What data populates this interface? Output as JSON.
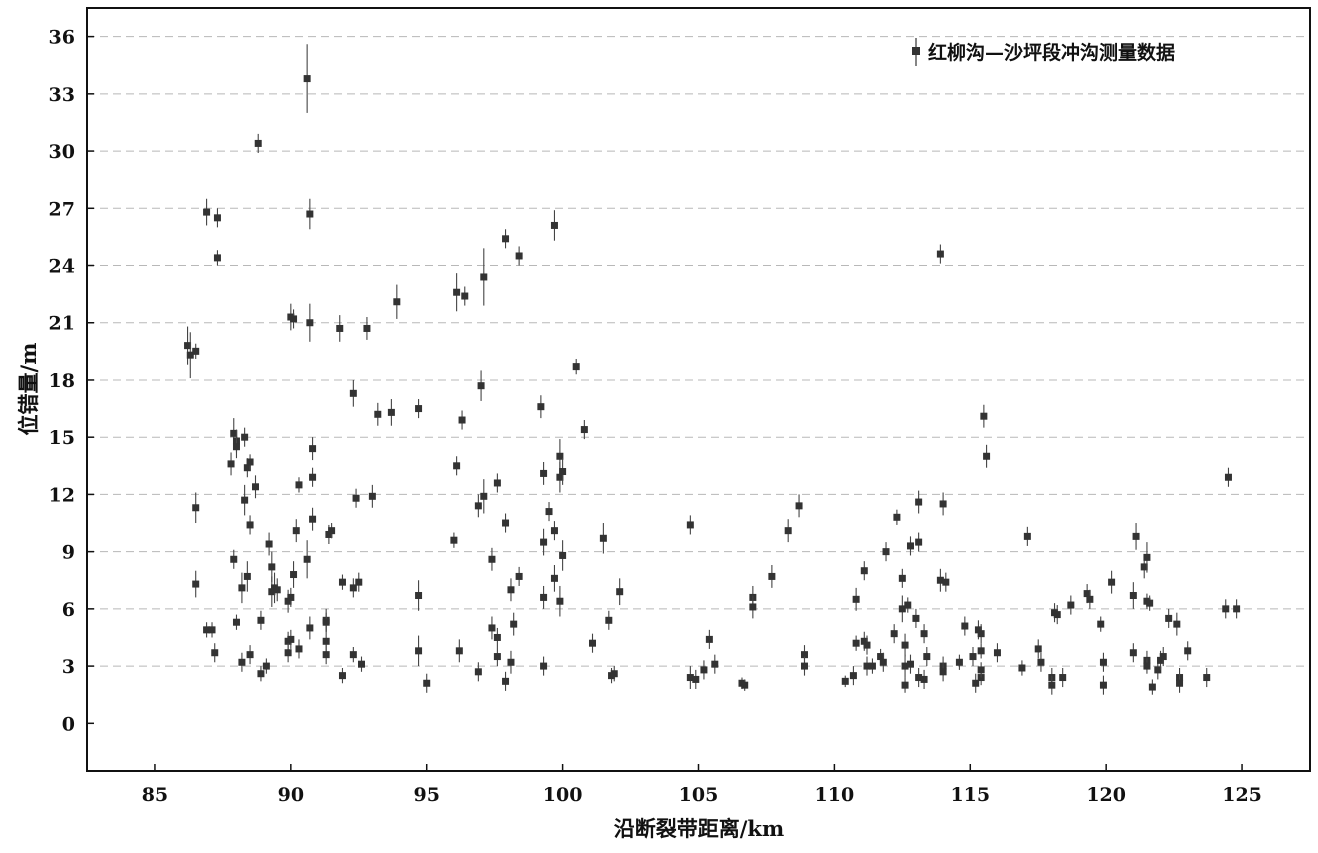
{
  "chart_data": {
    "type": "scatter",
    "title": "",
    "xlabel": "沿断裂带距离/km",
    "ylabel": "位错量/m",
    "xlim": [
      82.5,
      127.5
    ],
    "ylim": [
      -2.5,
      37.5
    ],
    "xticks": [
      85,
      90,
      95,
      100,
      105,
      110,
      115,
      120,
      125
    ],
    "yticks": [
      0,
      3,
      6,
      9,
      12,
      15,
      18,
      21,
      24,
      27,
      30,
      33,
      36
    ],
    "grid": "horizontal dashed",
    "legend_position": "top-right",
    "series": [
      {
        "name": "红柳沟—沙坪段冲沟测量数据",
        "color": "#333333",
        "marker": "square",
        "points": [
          [
            86.2,
            19.8,
            1.0
          ],
          [
            86.3,
            19.3,
            1.2
          ],
          [
            86.5,
            19.5,
            0.4
          ],
          [
            86.5,
            11.3,
            0.8
          ],
          [
            86.5,
            7.3,
            0.7
          ],
          [
            86.9,
            26.8,
            0.7
          ],
          [
            87.3,
            26.5,
            0.5
          ],
          [
            87.3,
            24.4,
            0.4
          ],
          [
            86.9,
            4.9,
            0.4
          ],
          [
            87.1,
            4.9,
            0.4
          ],
          [
            87.2,
            3.7,
            0.5
          ],
          [
            87.8,
            13.6,
            0.6
          ],
          [
            87.9,
            15.2,
            0.8
          ],
          [
            88.0,
            14.8,
            0.6
          ],
          [
            88.0,
            14.5,
            0.6
          ],
          [
            87.9,
            8.6,
            0.5
          ],
          [
            88.0,
            5.3,
            0.4
          ],
          [
            88.3,
            15.0,
            0.5
          ],
          [
            88.4,
            13.4,
            0.5
          ],
          [
            88.5,
            13.7,
            0.4
          ],
          [
            88.3,
            11.7,
            0.8
          ],
          [
            88.5,
            10.4,
            0.5
          ],
          [
            88.7,
            12.4,
            0.6
          ],
          [
            88.2,
            7.1,
            0.8
          ],
          [
            88.4,
            7.7,
            0.8
          ],
          [
            88.2,
            3.2,
            0.5
          ],
          [
            88.5,
            3.6,
            0.5
          ],
          [
            88.8,
            30.4,
            0.5
          ],
          [
            88.9,
            5.4,
            0.5
          ],
          [
            88.9,
            2.6,
            0.4
          ],
          [
            89.1,
            3.0,
            0.4
          ],
          [
            89.2,
            9.4,
            0.6
          ],
          [
            89.3,
            8.2,
            0.8
          ],
          [
            89.3,
            6.9,
            0.8
          ],
          [
            89.4,
            7.1,
            0.8
          ],
          [
            89.5,
            7.0,
            0.6
          ],
          [
            89.9,
            6.4,
            0.6
          ],
          [
            90.0,
            6.6,
            0.5
          ],
          [
            89.9,
            4.3,
            0.5
          ],
          [
            90.0,
            4.4,
            0.5
          ],
          [
            89.9,
            3.7,
            0.5
          ],
          [
            90.0,
            21.3,
            0.7
          ],
          [
            90.1,
            21.2,
            0.5
          ],
          [
            90.1,
            7.8,
            0.7
          ],
          [
            90.2,
            10.1,
            0.6
          ],
          [
            90.3,
            12.5,
            0.4
          ],
          [
            90.3,
            3.9,
            0.5
          ],
          [
            90.6,
            33.8,
            1.8
          ],
          [
            90.7,
            26.7,
            0.8
          ],
          [
            90.7,
            21.0,
            1.0
          ],
          [
            90.6,
            8.6,
            1.0
          ],
          [
            90.7,
            5.0,
            0.6
          ],
          [
            90.8,
            14.4,
            0.6
          ],
          [
            90.8,
            12.9,
            0.5
          ],
          [
            90.8,
            10.7,
            0.6
          ],
          [
            91.3,
            5.4,
            0.6
          ],
          [
            91.3,
            5.3,
            0.5
          ],
          [
            91.3,
            4.3,
            0.8
          ],
          [
            91.3,
            3.6,
            0.5
          ],
          [
            91.4,
            9.9,
            0.5
          ],
          [
            91.5,
            10.1,
            0.4
          ],
          [
            91.8,
            20.7,
            0.7
          ],
          [
            91.9,
            7.4,
            0.4
          ],
          [
            91.9,
            2.5,
            0.4
          ],
          [
            92.3,
            17.3,
            0.7
          ],
          [
            92.4,
            11.8,
            0.5
          ],
          [
            92.3,
            7.1,
            0.5
          ],
          [
            92.5,
            7.4,
            0.5
          ],
          [
            92.3,
            3.6,
            0.4
          ],
          [
            92.6,
            3.1,
            0.4
          ],
          [
            92.8,
            20.7,
            0.6
          ],
          [
            93.0,
            11.9,
            0.6
          ],
          [
            93.2,
            16.2,
            0.6
          ],
          [
            93.7,
            16.3,
            0.7
          ],
          [
            93.9,
            22.1,
            0.9
          ],
          [
            94.7,
            16.5,
            0.5
          ],
          [
            94.7,
            6.7,
            0.8
          ],
          [
            94.7,
            3.8,
            0.8
          ],
          [
            95.0,
            2.1,
            0.5
          ],
          [
            96.1,
            22.6,
            1.0
          ],
          [
            96.4,
            22.4,
            0.5
          ],
          [
            96.1,
            13.5,
            0.5
          ],
          [
            96.0,
            9.6,
            0.4
          ],
          [
            96.3,
            15.9,
            0.5
          ],
          [
            96.2,
            3.8,
            0.6
          ],
          [
            96.9,
            11.4,
            0.6
          ],
          [
            97.0,
            17.7,
            0.8
          ],
          [
            97.1,
            23.4,
            1.5
          ],
          [
            97.1,
            11.9,
            0.9
          ],
          [
            96.9,
            2.7,
            0.5
          ],
          [
            97.4,
            8.6,
            0.6
          ],
          [
            97.4,
            5.0,
            0.6
          ],
          [
            97.6,
            12.6,
            0.5
          ],
          [
            97.6,
            4.5,
            0.5
          ],
          [
            97.6,
            3.5,
            0.5
          ],
          [
            97.9,
            25.4,
            0.5
          ],
          [
            97.9,
            10.5,
            0.5
          ],
          [
            97.9,
            2.2,
            0.5
          ],
          [
            98.1,
            7.0,
            0.6
          ],
          [
            98.2,
            5.2,
            0.6
          ],
          [
            98.1,
            3.2,
            0.6
          ],
          [
            98.4,
            24.5,
            0.5
          ],
          [
            98.4,
            7.7,
            0.5
          ],
          [
            99.2,
            16.6,
            0.6
          ],
          [
            99.3,
            13.1,
            0.6
          ],
          [
            99.3,
            9.5,
            0.7
          ],
          [
            99.3,
            6.6,
            0.6
          ],
          [
            99.3,
            3.0,
            0.5
          ],
          [
            99.5,
            11.1,
            0.5
          ],
          [
            99.7,
            10.1,
            0.5
          ],
          [
            99.7,
            7.6,
            0.7
          ],
          [
            99.7,
            26.1,
            0.8
          ],
          [
            99.9,
            14.0,
            0.9
          ],
          [
            99.9,
            12.9,
            0.8
          ],
          [
            100.0,
            13.2,
            0.7
          ],
          [
            100.0,
            8.8,
            0.8
          ],
          [
            99.9,
            6.4,
            0.8
          ],
          [
            100.5,
            18.7,
            0.4
          ],
          [
            100.8,
            15.4,
            0.5
          ],
          [
            101.1,
            4.2,
            0.5
          ],
          [
            101.5,
            9.7,
            0.8
          ],
          [
            101.7,
            5.4,
            0.5
          ],
          [
            101.8,
            2.5,
            0.4
          ],
          [
            101.9,
            2.6,
            0.4
          ],
          [
            102.1,
            6.9,
            0.7
          ],
          [
            104.7,
            10.4,
            0.5
          ],
          [
            104.7,
            2.4,
            0.6
          ],
          [
            104.9,
            2.3,
            0.5
          ],
          [
            105.2,
            2.8,
            0.5
          ],
          [
            105.4,
            4.4,
            0.5
          ],
          [
            105.6,
            3.1,
            0.5
          ],
          [
            106.6,
            2.1,
            0.3
          ],
          [
            106.7,
            2.0,
            0.3
          ],
          [
            107.0,
            6.6,
            0.6
          ],
          [
            107.0,
            6.1,
            0.6
          ],
          [
            107.7,
            7.7,
            0.6
          ],
          [
            108.3,
            10.1,
            0.6
          ],
          [
            108.7,
            11.4,
            0.6
          ],
          [
            108.9,
            3.6,
            0.5
          ],
          [
            108.9,
            3.0,
            0.5
          ],
          [
            110.4,
            2.2,
            0.3
          ],
          [
            110.7,
            2.5,
            0.5
          ],
          [
            110.8,
            6.5,
            0.6
          ],
          [
            110.8,
            4.2,
            0.4
          ],
          [
            111.1,
            8.0,
            0.5
          ],
          [
            111.1,
            4.3,
            0.5
          ],
          [
            111.2,
            4.1,
            0.5
          ],
          [
            111.2,
            3.0,
            0.5
          ],
          [
            111.4,
            3.0,
            0.4
          ],
          [
            111.7,
            3.5,
            0.4
          ],
          [
            111.8,
            3.2,
            0.5
          ],
          [
            111.9,
            9.0,
            0.5
          ],
          [
            112.2,
            4.7,
            0.5
          ],
          [
            112.3,
            10.8,
            0.4
          ],
          [
            112.5,
            7.6,
            0.5
          ],
          [
            112.5,
            6.0,
            0.7
          ],
          [
            112.6,
            4.1,
            0.6
          ],
          [
            112.6,
            3.0,
            0.6
          ],
          [
            112.6,
            2.0,
            0.4
          ],
          [
            112.7,
            6.2,
            0.4
          ],
          [
            112.8,
            9.3,
            0.5
          ],
          [
            112.8,
            3.1,
            0.5
          ],
          [
            113.0,
            5.5,
            0.5
          ],
          [
            113.1,
            11.6,
            0.6
          ],
          [
            113.1,
            9.5,
            0.5
          ],
          [
            113.1,
            2.4,
            0.5
          ],
          [
            113.3,
            2.3,
            0.5
          ],
          [
            113.3,
            4.7,
            0.5
          ],
          [
            113.4,
            3.5,
            0.5
          ],
          [
            113.9,
            24.6,
            0.5
          ],
          [
            113.9,
            7.5,
            0.6
          ],
          [
            114.0,
            11.5,
            0.6
          ],
          [
            114.1,
            7.4,
            0.5
          ],
          [
            114.0,
            3.0,
            0.5
          ],
          [
            114.0,
            2.7,
            0.5
          ],
          [
            114.6,
            3.2,
            0.4
          ],
          [
            114.8,
            5.1,
            0.5
          ],
          [
            115.1,
            3.5,
            0.5
          ],
          [
            115.2,
            2.1,
            0.5
          ],
          [
            115.3,
            4.9,
            0.5
          ],
          [
            115.4,
            4.7,
            0.5
          ],
          [
            115.4,
            3.8,
            0.4
          ],
          [
            115.4,
            2.4,
            0.4
          ],
          [
            115.4,
            2.8,
            0.4
          ],
          [
            115.5,
            16.1,
            0.6
          ],
          [
            115.6,
            14.0,
            0.6
          ],
          [
            116.0,
            3.7,
            0.5
          ],
          [
            116.9,
            2.9,
            0.4
          ],
          [
            117.1,
            9.8,
            0.5
          ],
          [
            117.5,
            3.9,
            0.5
          ],
          [
            117.6,
            3.2,
            0.5
          ],
          [
            118.0,
            2.4,
            0.5
          ],
          [
            118.0,
            2.0,
            0.5
          ],
          [
            118.1,
            5.8,
            0.5
          ],
          [
            118.2,
            5.7,
            0.5
          ],
          [
            118.4,
            2.4,
            0.5
          ],
          [
            118.7,
            6.2,
            0.5
          ],
          [
            119.3,
            6.8,
            0.5
          ],
          [
            119.4,
            6.5,
            0.5
          ],
          [
            119.8,
            5.2,
            0.4
          ],
          [
            119.9,
            3.2,
            0.5
          ],
          [
            119.9,
            2.0,
            0.5
          ],
          [
            120.2,
            7.4,
            0.6
          ],
          [
            121.0,
            6.7,
            0.7
          ],
          [
            121.0,
            3.7,
            0.5
          ],
          [
            121.1,
            9.8,
            0.7
          ],
          [
            121.4,
            8.2,
            0.6
          ],
          [
            121.5,
            8.7,
            0.8
          ],
          [
            121.5,
            3.3,
            0.5
          ],
          [
            121.5,
            3.0,
            0.4
          ],
          [
            121.5,
            6.4,
            0.4
          ],
          [
            121.6,
            6.3,
            0.4
          ],
          [
            121.7,
            1.9,
            0.4
          ],
          [
            121.9,
            2.8,
            0.5
          ],
          [
            122.0,
            3.3,
            0.5
          ],
          [
            122.1,
            3.5,
            0.5
          ],
          [
            122.3,
            5.5,
            0.5
          ],
          [
            122.6,
            5.2,
            0.6
          ],
          [
            122.7,
            2.4,
            0.5
          ],
          [
            122.7,
            2.1,
            0.5
          ],
          [
            123.0,
            3.8,
            0.5
          ],
          [
            123.7,
            2.4,
            0.5
          ],
          [
            124.4,
            6.0,
            0.5
          ],
          [
            124.5,
            12.9,
            0.5
          ],
          [
            124.8,
            6.0,
            0.5
          ]
        ]
      }
    ]
  }
}
